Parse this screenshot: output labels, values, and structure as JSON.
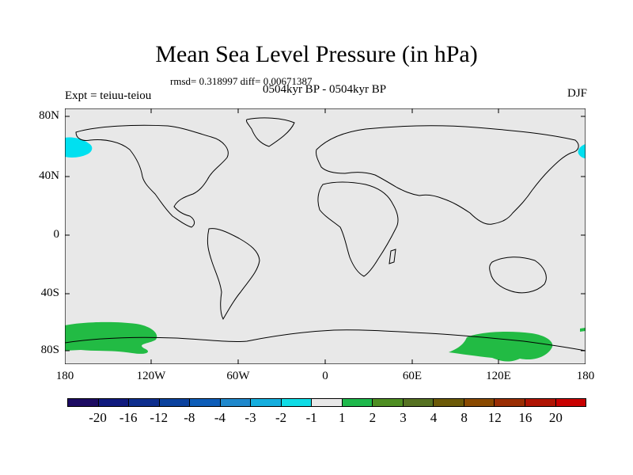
{
  "title": "Mean Sea Level Pressure (in hPa)",
  "stats": "rmsd= 0.318997 diff= 0.00671387",
  "period": "0504kyr BP - 0504kyr BP",
  "left_label": "Expt = teiuu-teiou",
  "right_label": "DJF",
  "lat_labels": [
    "80N",
    "40N",
    "0",
    "40S",
    "80S"
  ],
  "lon_labels": [
    "180",
    "120W",
    "60W",
    "0",
    "60E",
    "120E",
    "180"
  ],
  "colorbar": {
    "colors": [
      "#1c0b62",
      "#101a7e",
      "#0e2e8e",
      "#0b429e",
      "#0d5db8",
      "#1f88cc",
      "#15aede",
      "#10dce6",
      "#e8e8e8",
      "#1fb84c",
      "#4e8e22",
      "#567222",
      "#6c5a08",
      "#8a4a00",
      "#9a2e04",
      "#b01404",
      "#c80000"
    ],
    "labels": [
      "-20",
      "-16",
      "-12",
      "-8",
      "-4",
      "-3",
      "-2",
      "-1",
      "1",
      "2",
      "3",
      "4",
      "8",
      "12",
      "16",
      "20"
    ]
  },
  "map_colors": {
    "background": "#e8e8e8",
    "positive": "#22bb44",
    "negative": "#00e0f0",
    "coast": "#000000"
  }
}
